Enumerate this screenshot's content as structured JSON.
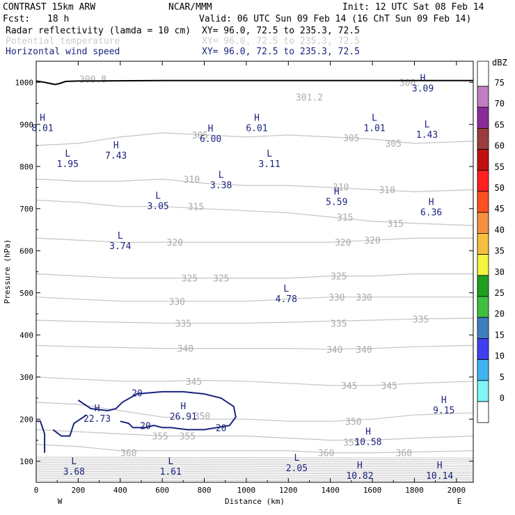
{
  "header": {
    "model": "CONTRAST 15km ARW",
    "org": "NCAR/MMM",
    "init": "Init: 12 UTC Sat 08 Feb 14",
    "fcst_label": "Fcst:",
    "fcst_value": "18 h",
    "valid": "Valid: 06 UTC Sun 09 Feb 14 (16 ChT Sun 09 Feb 14)"
  },
  "legend": [
    {
      "label": "Radar reflectivity (lamda = 10 cm)",
      "xy": "XY=  96.0, 72.5 to 235.3, 72.5",
      "color": "#000000"
    },
    {
      "label": "Potential temperature",
      "xy": "XY=  96.0, 72.5 to 235.3, 72.5",
      "color": "#cccccc"
    },
    {
      "label": "Horizontal wind speed",
      "xy": "XY=  96.0, 72.5 to 235.3, 72.5",
      "color": "#1a237e"
    }
  ],
  "colorbar": {
    "unit": "dBZ",
    "levels": [
      0,
      5,
      10,
      15,
      20,
      25,
      30,
      35,
      40,
      45,
      50,
      55,
      60,
      65,
      70,
      75
    ],
    "colors": [
      "#ffffff",
      "#7ff5f5",
      "#3fb3f0",
      "#3f3ff0",
      "#3f7fbf",
      "#3fbf3f",
      "#1fa01f",
      "#f5f540",
      "#f5c040",
      "#f59040",
      "#ff5020",
      "#ff2020",
      "#c01010",
      "#9c3c3c",
      "#8c2c9c",
      "#c07fc0"
    ]
  },
  "chart_data": {
    "type": "line",
    "xlabel": "Distance (km)",
    "ylabel": "Pressure (hPa)",
    "xlim": [
      0,
      2080
    ],
    "ylim": [
      1050,
      50
    ],
    "xticks": [
      0,
      200,
      400,
      600,
      800,
      1000,
      1200,
      1400,
      1600,
      1800,
      2000
    ],
    "yticks": [
      100,
      200,
      300,
      400,
      500,
      600,
      700,
      800,
      900,
      1000
    ],
    "x_end_labels": {
      "left": "W",
      "right": "E"
    },
    "theta_contours": [
      {
        "name": "305",
        "points": [
          [
            0,
            850
          ],
          [
            200,
            855
          ],
          [
            400,
            870
          ],
          [
            600,
            880
          ],
          [
            800,
            875
          ],
          [
            1000,
            870
          ],
          [
            1200,
            875
          ],
          [
            1400,
            870
          ],
          [
            1600,
            865
          ],
          [
            1800,
            855
          ],
          [
            2080,
            860
          ]
        ]
      },
      {
        "name": "310",
        "points": [
          [
            0,
            770
          ],
          [
            200,
            765
          ],
          [
            400,
            765
          ],
          [
            600,
            770
          ],
          [
            800,
            760
          ],
          [
            1000,
            755
          ],
          [
            1200,
            755
          ],
          [
            1400,
            750
          ],
          [
            1600,
            745
          ],
          [
            1800,
            740
          ],
          [
            2080,
            745
          ]
        ]
      },
      {
        "name": "315",
        "points": [
          [
            0,
            720
          ],
          [
            200,
            715
          ],
          [
            400,
            705
          ],
          [
            600,
            705
          ],
          [
            800,
            700
          ],
          [
            1000,
            695
          ],
          [
            1200,
            690
          ],
          [
            1400,
            680
          ],
          [
            1600,
            670
          ],
          [
            1800,
            665
          ],
          [
            2080,
            660
          ]
        ]
      },
      {
        "name": "320",
        "points": [
          [
            0,
            630
          ],
          [
            200,
            625
          ],
          [
            400,
            620
          ],
          [
            600,
            620
          ],
          [
            800,
            620
          ],
          [
            1000,
            620
          ],
          [
            1200,
            620
          ],
          [
            1400,
            620
          ],
          [
            1600,
            625
          ],
          [
            1800,
            630
          ],
          [
            2080,
            630
          ]
        ]
      },
      {
        "name": "325",
        "points": [
          [
            0,
            545
          ],
          [
            200,
            540
          ],
          [
            400,
            535
          ],
          [
            600,
            535
          ],
          [
            800,
            535
          ],
          [
            1000,
            535
          ],
          [
            1200,
            535
          ],
          [
            1400,
            540
          ],
          [
            1600,
            540
          ],
          [
            1800,
            545
          ],
          [
            2080,
            545
          ]
        ]
      },
      {
        "name": "330",
        "points": [
          [
            0,
            490
          ],
          [
            200,
            485
          ],
          [
            400,
            480
          ],
          [
            600,
            480
          ],
          [
            800,
            480
          ],
          [
            1000,
            480
          ],
          [
            1200,
            485
          ],
          [
            1400,
            490
          ],
          [
            1600,
            490
          ],
          [
            1800,
            490
          ],
          [
            2080,
            490
          ]
        ]
      },
      {
        "name": "335",
        "points": [
          [
            0,
            435
          ],
          [
            200,
            432
          ],
          [
            400,
            430
          ],
          [
            600,
            428
          ],
          [
            800,
            428
          ],
          [
            1000,
            428
          ],
          [
            1200,
            430
          ],
          [
            1400,
            433
          ],
          [
            1600,
            435
          ],
          [
            1800,
            438
          ],
          [
            2080,
            440
          ]
        ]
      },
      {
        "name": "340",
        "points": [
          [
            0,
            375
          ],
          [
            200,
            372
          ],
          [
            400,
            370
          ],
          [
            600,
            368
          ],
          [
            800,
            368
          ],
          [
            1000,
            368
          ],
          [
            1200,
            368
          ],
          [
            1400,
            366
          ],
          [
            1600,
            368
          ],
          [
            1800,
            372
          ],
          [
            2080,
            375
          ]
        ]
      },
      {
        "name": "345",
        "points": [
          [
            0,
            300
          ],
          [
            200,
            295
          ],
          [
            400,
            290
          ],
          [
            600,
            290
          ],
          [
            800,
            292
          ],
          [
            1000,
            290
          ],
          [
            1200,
            285
          ],
          [
            1400,
            280
          ],
          [
            1600,
            280
          ],
          [
            1800,
            285
          ],
          [
            2080,
            290
          ]
        ]
      },
      {
        "name": "350",
        "points": [
          [
            0,
            240
          ],
          [
            200,
            235
          ],
          [
            400,
            220
          ],
          [
            600,
            205
          ],
          [
            800,
            200
          ],
          [
            1000,
            200
          ],
          [
            1200,
            195
          ],
          [
            1400,
            195
          ],
          [
            1600,
            200
          ],
          [
            1800,
            210
          ],
          [
            2080,
            215
          ]
        ]
      },
      {
        "name": "355",
        "points": [
          [
            0,
            175
          ],
          [
            200,
            170
          ],
          [
            400,
            165
          ],
          [
            600,
            160
          ],
          [
            800,
            160
          ],
          [
            1000,
            160
          ],
          [
            1200,
            155
          ],
          [
            1400,
            150
          ],
          [
            1600,
            150
          ],
          [
            1800,
            155
          ],
          [
            2080,
            160
          ]
        ]
      },
      {
        "name": "360",
        "points": [
          [
            0,
            140
          ],
          [
            200,
            135
          ],
          [
            400,
            125
          ],
          [
            600,
            125
          ],
          [
            800,
            125
          ],
          [
            1000,
            125
          ],
          [
            1200,
            125
          ],
          [
            1400,
            120
          ],
          [
            1600,
            120
          ],
          [
            1800,
            122
          ],
          [
            2080,
            125
          ]
        ]
      }
    ],
    "theta_labels": [
      {
        "text": "360",
        "x": 440,
        "y": 120
      },
      {
        "text": "360",
        "x": 1380,
        "y": 120
      },
      {
        "text": "360",
        "x": 1750,
        "y": 120
      },
      {
        "text": "355",
        "x": 590,
        "y": 160
      },
      {
        "text": "355",
        "x": 720,
        "y": 160
      },
      {
        "text": "355",
        "x": 1500,
        "y": 145
      },
      {
        "text": "350",
        "x": 790,
        "y": 208
      },
      {
        "text": "350",
        "x": 1510,
        "y": 195
      },
      {
        "text": "345",
        "x": 750,
        "y": 290
      },
      {
        "text": "345",
        "x": 1490,
        "y": 280
      },
      {
        "text": "345",
        "x": 1680,
        "y": 280
      },
      {
        "text": "340",
        "x": 710,
        "y": 368
      },
      {
        "text": "340",
        "x": 1420,
        "y": 366
      },
      {
        "text": "340",
        "x": 1560,
        "y": 366
      },
      {
        "text": "335",
        "x": 700,
        "y": 428
      },
      {
        "text": "335",
        "x": 1440,
        "y": 428
      },
      {
        "text": "335",
        "x": 1830,
        "y": 438
      },
      {
        "text": "330",
        "x": 670,
        "y": 480
      },
      {
        "text": "330",
        "x": 1430,
        "y": 490
      },
      {
        "text": "330",
        "x": 1560,
        "y": 490
      },
      {
        "text": "325",
        "x": 730,
        "y": 535
      },
      {
        "text": "325",
        "x": 880,
        "y": 535
      },
      {
        "text": "325",
        "x": 1440,
        "y": 540
      },
      {
        "text": "320",
        "x": 660,
        "y": 620
      },
      {
        "text": "320",
        "x": 1460,
        "y": 620
      },
      {
        "text": "320",
        "x": 1600,
        "y": 625
      },
      {
        "text": "315",
        "x": 760,
        "y": 705
      },
      {
        "text": "315",
        "x": 1470,
        "y": 680
      },
      {
        "text": "315",
        "x": 1710,
        "y": 665
      },
      {
        "text": "310",
        "x": 740,
        "y": 770
      },
      {
        "text": "310",
        "x": 1450,
        "y": 752
      },
      {
        "text": "310",
        "x": 1670,
        "y": 745
      },
      {
        "text": "305",
        "x": 780,
        "y": 875
      },
      {
        "text": "305",
        "x": 1500,
        "y": 868
      },
      {
        "text": "305",
        "x": 1700,
        "y": 855
      },
      {
        "text": "301.2",
        "x": 1300,
        "y": 965
      },
      {
        "text": "300.8",
        "x": 270,
        "y": 1008
      },
      {
        "text": "300.",
        "x": 1780,
        "y": 1000
      }
    ],
    "wind_contour_20": {
      "name": "20",
      "segments": [
        [
          [
            80,
            175
          ],
          [
            120,
            160
          ],
          [
            160,
            160
          ],
          [
            180,
            190
          ],
          [
            210,
            200
          ],
          [
            240,
            210
          ]
        ],
        [
          [
            200,
            245
          ],
          [
            260,
            225
          ],
          [
            340,
            220
          ],
          [
            380,
            225
          ],
          [
            410,
            240
          ],
          [
            480,
            260
          ],
          [
            600,
            265
          ],
          [
            700,
            265
          ],
          [
            800,
            260
          ],
          [
            880,
            250
          ],
          [
            940,
            230
          ],
          [
            950,
            205
          ],
          [
            920,
            185
          ],
          [
            860,
            180
          ],
          [
            800,
            175
          ],
          [
            720,
            175
          ],
          [
            640,
            180
          ],
          [
            600,
            180
          ],
          [
            560,
            185
          ],
          [
            520,
            180
          ],
          [
            460,
            180
          ],
          [
            440,
            190
          ],
          [
            400,
            195
          ]
        ]
      ],
      "labels": [
        {
          "text": "20",
          "x": 520,
          "y": 185
        },
        {
          "text": "20",
          "x": 880,
          "y": 180
        },
        {
          "text": "20",
          "x": 480,
          "y": 262
        }
      ]
    },
    "wind_extrema": [
      {
        "type": "L",
        "value": "3.68",
        "x": 180,
        "y": 90
      },
      {
        "type": "L",
        "value": "1.61",
        "x": 640,
        "y": 90
      },
      {
        "type": "L",
        "value": "2.05",
        "x": 1240,
        "y": 98
      },
      {
        "type": "H",
        "value": "10.82",
        "x": 1540,
        "y": 80
      },
      {
        "type": "H",
        "value": "10.14",
        "x": 1920,
        "y": 80
      },
      {
        "type": "H",
        "value": "10.58",
        "x": 1580,
        "y": 160
      },
      {
        "type": "H",
        "value": "22.73",
        "x": 290,
        "y": 215
      },
      {
        "type": "H",
        "value": "26.91",
        "x": 700,
        "y": 220
      },
      {
        "type": "H",
        "value": "9.15",
        "x": 1940,
        "y": 235
      },
      {
        "type": "L",
        "value": "4.78",
        "x": 1190,
        "y": 500
      },
      {
        "type": "L",
        "value": "3.74",
        "x": 400,
        "y": 625
      },
      {
        "type": "H",
        "value": "6.36",
        "x": 1880,
        "y": 705
      },
      {
        "type": "L",
        "value": "3.05",
        "x": 580,
        "y": 720
      },
      {
        "type": "H",
        "value": "5.59",
        "x": 1430,
        "y": 730
      },
      {
        "type": "L",
        "value": "3.38",
        "x": 880,
        "y": 770
      },
      {
        "type": "L",
        "value": "1.95",
        "x": 150,
        "y": 820
      },
      {
        "type": "L",
        "value": "3.11",
        "x": 1110,
        "y": 820
      },
      {
        "type": "H",
        "value": "7.43",
        "x": 380,
        "y": 840
      },
      {
        "type": "H",
        "value": "8.01",
        "x": 30,
        "y": 905
      },
      {
        "type": "H",
        "value": "6.00",
        "x": 830,
        "y": 880
      },
      {
        "type": "L",
        "value": "1.43",
        "x": 1860,
        "y": 890
      },
      {
        "type": "H",
        "value": "6.01",
        "x": 1050,
        "y": 905
      },
      {
        "type": "L",
        "value": "1.01",
        "x": 1610,
        "y": 905
      },
      {
        "type": "H",
        "value": "3.09",
        "x": 1840,
        "y": 1000
      }
    ],
    "terrain": [
      [
        0,
        1003
      ],
      [
        40,
        1000
      ],
      [
        70,
        997
      ],
      [
        90,
        995
      ],
      [
        110,
        997
      ],
      [
        140,
        1002
      ],
      [
        200,
        1003
      ],
      [
        600,
        1004
      ],
      [
        1000,
        1004
      ],
      [
        1400,
        1004
      ],
      [
        1800,
        1004
      ],
      [
        2080,
        1004
      ]
    ]
  }
}
